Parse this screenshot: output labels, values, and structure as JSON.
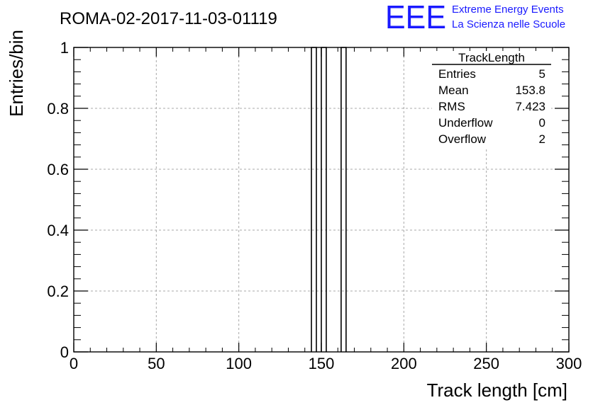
{
  "chart_data": {
    "type": "histogram",
    "title": "ROMA-02-2017-11-03-01119",
    "xlabel": "Track length [cm]",
    "ylabel": "Entries/bin",
    "xlim": [
      0,
      300
    ],
    "ylim": [
      0,
      1
    ],
    "x_ticks": [
      "0",
      "50",
      "100",
      "150",
      "200",
      "250",
      "300"
    ],
    "y_ticks": [
      "0",
      "0.2",
      "0.4",
      "0.6",
      "0.8",
      "1"
    ],
    "grid": true,
    "bins": [
      {
        "x0": 144,
        "x1": 147,
        "value": 1
      },
      {
        "x0": 150,
        "x1": 153,
        "value": 1
      },
      {
        "x0": 162,
        "x1": 165,
        "value": 1
      }
    ],
    "stats": {
      "name": "TrackLength",
      "rows": [
        {
          "label": "Entries",
          "value": "5"
        },
        {
          "label": "Mean",
          "value": "153.8"
        },
        {
          "label": "RMS",
          "value": "7.423"
        },
        {
          "label": "Underflow",
          "value": "0"
        },
        {
          "label": "Overflow",
          "value": "2"
        }
      ]
    }
  },
  "logo": {
    "mark": "EEE",
    "line1": "Extreme Energy Events",
    "line2": "La Scienza nelle Scuole",
    "color": "#1a1aff"
  }
}
